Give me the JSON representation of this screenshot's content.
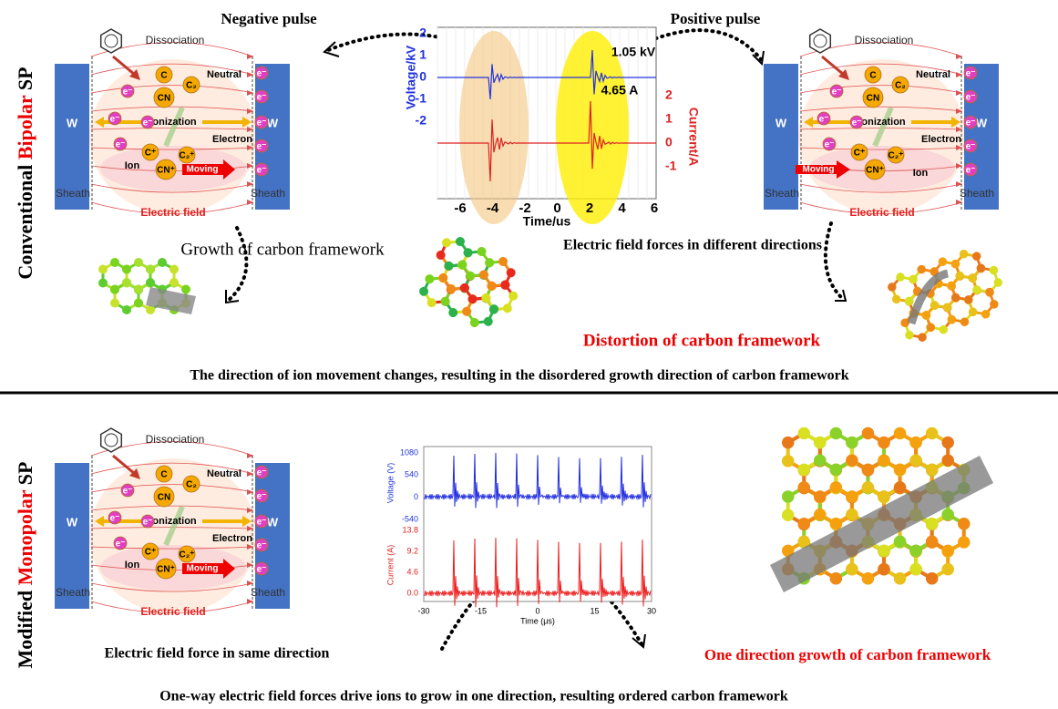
{
  "conventional": {
    "side_label": [
      "Conventional ",
      "Bipolar",
      " SP"
    ],
    "negative_pulse": "Negative pulse",
    "positive_pulse": "Positive pulse",
    "growth": "Growth of carbon framework",
    "forces": "Electric field forces in different directions",
    "distortion": "Distortion of carbon framework",
    "caption": "The direction of ion movement changes, resulting in the disordered growth direction of carbon framework"
  },
  "monopolar": {
    "side_label": [
      "Modified ",
      "Monopolar",
      " SP"
    ],
    "forces": "Electric field force in same direction",
    "growth": "One direction growth of carbon framework",
    "caption": "One-way electric field forces drive ions to grow in one direction, resulting ordered carbon framework"
  },
  "plasma": {
    "electrode": "W",
    "dissociation": "Dissociation",
    "neutral": "Neutral",
    "ionization": "Ionization",
    "electron_label": "Electron",
    "ion": "Ion",
    "moving": "Moving",
    "sheath": "Sheath",
    "field": "Electric field",
    "electron": "e⁻",
    "c": "C",
    "c2": "C₂",
    "cn": "CN",
    "c_ion": "C⁺",
    "c2_ion": "C₂⁺",
    "cn_ion": "CN⁺"
  },
  "bipolar_chart": {
    "y_label": "Voltage/kV",
    "y2_label": "Current/A",
    "x_label": "Time/us",
    "yticks": [
      "2",
      "1",
      "0",
      "-1",
      "-2"
    ],
    "y2ticks": [
      "2",
      "1",
      "0",
      "-1"
    ],
    "xticks": [
      "-6",
      "-4",
      "-2",
      "0",
      "2",
      "4",
      "6"
    ],
    "voltage_peak": "1.05 kV",
    "current_peak": "4.65 A"
  },
  "monopolar_chart": {
    "y_label": "Voltage (V)",
    "y2_label": "Current (A)",
    "x_label": "Time (μs)",
    "voltage_ticks": [
      "1080",
      "540",
      "0",
      "-540"
    ],
    "current_ticks": [
      "13.8",
      "9.2",
      "4.6",
      "0.0"
    ],
    "xticks": [
      "-30",
      "-15",
      "0",
      "15",
      "30"
    ]
  }
}
